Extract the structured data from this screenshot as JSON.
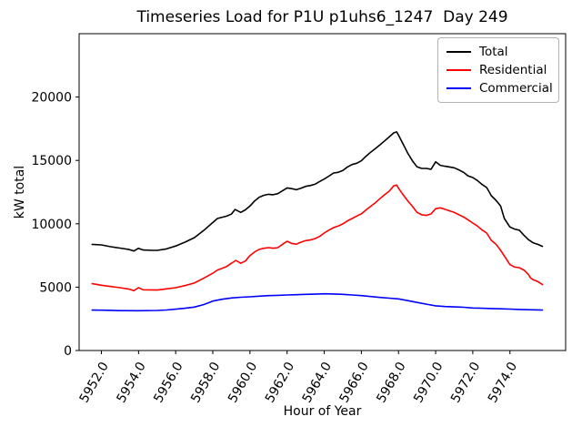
{
  "chart_data": {
    "type": "line",
    "title": "Timeseries Load for P1U p1uhs6_1247  Day 249",
    "xlabel": "Hour of Year",
    "ylabel": "kW total",
    "xlim": [
      5950.8,
      5977.0
    ],
    "ylim": [
      0,
      25000
    ],
    "grid": false,
    "xticks": {
      "values": [
        5952,
        5954,
        5956,
        5958,
        5960,
        5962,
        5964,
        5966,
        5968,
        5970,
        5972,
        5974
      ],
      "labels": [
        "5952.0",
        "5954.0",
        "5956.0",
        "5958.0",
        "5960.0",
        "5962.0",
        "5964.0",
        "5966.0",
        "5968.0",
        "5970.0",
        "5972.0",
        "5974.0"
      ],
      "rotation_deg": 60
    },
    "yticks": {
      "values": [
        0,
        5000,
        10000,
        15000,
        20000
      ],
      "labels": [
        "0",
        "5000",
        "10000",
        "15000",
        "20000"
      ]
    },
    "legend": {
      "position": "upper right",
      "entries": [
        "Total",
        "Residential",
        "Commercial"
      ]
    },
    "series": [
      {
        "name": "Total",
        "color": "#000000",
        "points": [
          [
            5951.5,
            8380
          ],
          [
            5952,
            8330
          ],
          [
            5952.5,
            8190
          ],
          [
            5953,
            8080
          ],
          [
            5953.5,
            7970
          ],
          [
            5953.75,
            7850
          ],
          [
            5954,
            8070
          ],
          [
            5954.25,
            7930
          ],
          [
            5954.75,
            7900
          ],
          [
            5955,
            7900
          ],
          [
            5955.5,
            8020
          ],
          [
            5956,
            8250
          ],
          [
            5956.5,
            8550
          ],
          [
            5957,
            8900
          ],
          [
            5957.5,
            9460
          ],
          [
            5958,
            10100
          ],
          [
            5958.25,
            10420
          ],
          [
            5958.75,
            10600
          ],
          [
            5959,
            10760
          ],
          [
            5959.2,
            11130
          ],
          [
            5959.5,
            10900
          ],
          [
            5959.75,
            11100
          ],
          [
            5960,
            11400
          ],
          [
            5960.25,
            11800
          ],
          [
            5960.5,
            12100
          ],
          [
            5960.75,
            12250
          ],
          [
            5961,
            12330
          ],
          [
            5961.25,
            12290
          ],
          [
            5961.5,
            12380
          ],
          [
            5961.75,
            12600
          ],
          [
            5962,
            12830
          ],
          [
            5962.25,
            12770
          ],
          [
            5962.5,
            12690
          ],
          [
            5962.75,
            12810
          ],
          [
            5963,
            12950
          ],
          [
            5963.25,
            13020
          ],
          [
            5963.5,
            13120
          ],
          [
            5963.75,
            13330
          ],
          [
            5964,
            13530
          ],
          [
            5964.25,
            13760
          ],
          [
            5964.5,
            14010
          ],
          [
            5964.75,
            14060
          ],
          [
            5965,
            14200
          ],
          [
            5965.25,
            14480
          ],
          [
            5965.5,
            14680
          ],
          [
            5965.75,
            14780
          ],
          [
            5966,
            14970
          ],
          [
            5966.25,
            15330
          ],
          [
            5966.5,
            15650
          ],
          [
            5966.75,
            15930
          ],
          [
            5967,
            16230
          ],
          [
            5967.25,
            16540
          ],
          [
            5967.5,
            16850
          ],
          [
            5967.75,
            17180
          ],
          [
            5967.9,
            17250
          ],
          [
            5968,
            17000
          ],
          [
            5968.25,
            16290
          ],
          [
            5968.5,
            15570
          ],
          [
            5968.75,
            14970
          ],
          [
            5969,
            14490
          ],
          [
            5969.25,
            14370
          ],
          [
            5969.5,
            14370
          ],
          [
            5969.75,
            14300
          ],
          [
            5970,
            14890
          ],
          [
            5970.25,
            14610
          ],
          [
            5970.5,
            14540
          ],
          [
            5971,
            14420
          ],
          [
            5971.25,
            14250
          ],
          [
            5971.5,
            14060
          ],
          [
            5971.75,
            13770
          ],
          [
            5972,
            13650
          ],
          [
            5972.25,
            13410
          ],
          [
            5972.5,
            13100
          ],
          [
            5972.75,
            12860
          ],
          [
            5973,
            12210
          ],
          [
            5973.25,
            11850
          ],
          [
            5973.5,
            11400
          ],
          [
            5973.7,
            10420
          ],
          [
            5974,
            9750
          ],
          [
            5974.25,
            9580
          ],
          [
            5974.5,
            9500
          ],
          [
            5974.75,
            9100
          ],
          [
            5975,
            8740
          ],
          [
            5975.25,
            8500
          ],
          [
            5975.5,
            8380
          ],
          [
            5975.75,
            8220
          ]
        ]
      },
      {
        "name": "Residential",
        "color": "#ff0000",
        "points": [
          [
            5951.5,
            5270
          ],
          [
            5952,
            5150
          ],
          [
            5952.5,
            5050
          ],
          [
            5953,
            4960
          ],
          [
            5953.5,
            4840
          ],
          [
            5953.75,
            4720
          ],
          [
            5954,
            4960
          ],
          [
            5954.25,
            4790
          ],
          [
            5955,
            4770
          ],
          [
            5955.5,
            4860
          ],
          [
            5956,
            4960
          ],
          [
            5956.5,
            5120
          ],
          [
            5957,
            5320
          ],
          [
            5957.5,
            5700
          ],
          [
            5958,
            6100
          ],
          [
            5958.25,
            6350
          ],
          [
            5958.5,
            6490
          ],
          [
            5958.75,
            6630
          ],
          [
            5959,
            6880
          ],
          [
            5959.25,
            7110
          ],
          [
            5959.5,
            6880
          ],
          [
            5959.75,
            7060
          ],
          [
            5960,
            7490
          ],
          [
            5960.25,
            7780
          ],
          [
            5960.5,
            7980
          ],
          [
            5960.75,
            8070
          ],
          [
            5961,
            8120
          ],
          [
            5961.25,
            8070
          ],
          [
            5961.5,
            8120
          ],
          [
            5961.75,
            8380
          ],
          [
            5962,
            8620
          ],
          [
            5962.25,
            8450
          ],
          [
            5962.5,
            8390
          ],
          [
            5962.75,
            8550
          ],
          [
            5963,
            8670
          ],
          [
            5963.25,
            8720
          ],
          [
            5963.5,
            8830
          ],
          [
            5963.75,
            9000
          ],
          [
            5964,
            9270
          ],
          [
            5964.25,
            9500
          ],
          [
            5964.5,
            9700
          ],
          [
            5964.75,
            9820
          ],
          [
            5965,
            9990
          ],
          [
            5965.25,
            10230
          ],
          [
            5965.5,
            10420
          ],
          [
            5965.75,
            10610
          ],
          [
            5966,
            10780
          ],
          [
            5966.25,
            11090
          ],
          [
            5966.5,
            11380
          ],
          [
            5966.75,
            11660
          ],
          [
            5967,
            11980
          ],
          [
            5967.25,
            12290
          ],
          [
            5967.5,
            12570
          ],
          [
            5967.75,
            13000
          ],
          [
            5967.9,
            13050
          ],
          [
            5968,
            12810
          ],
          [
            5968.25,
            12290
          ],
          [
            5968.5,
            11810
          ],
          [
            5968.75,
            11380
          ],
          [
            5969,
            10900
          ],
          [
            5969.25,
            10710
          ],
          [
            5969.5,
            10660
          ],
          [
            5969.75,
            10780
          ],
          [
            5970,
            11190
          ],
          [
            5970.25,
            11260
          ],
          [
            5970.5,
            11140
          ],
          [
            5970.75,
            11020
          ],
          [
            5971,
            10900
          ],
          [
            5971.25,
            10710
          ],
          [
            5971.5,
            10540
          ],
          [
            5971.75,
            10300
          ],
          [
            5972,
            10060
          ],
          [
            5972.25,
            9820
          ],
          [
            5972.5,
            9510
          ],
          [
            5972.75,
            9270
          ],
          [
            5973,
            8690
          ],
          [
            5973.25,
            8390
          ],
          [
            5973.5,
            7900
          ],
          [
            5973.75,
            7350
          ],
          [
            5974,
            6780
          ],
          [
            5974.25,
            6590
          ],
          [
            5974.5,
            6540
          ],
          [
            5974.75,
            6350
          ],
          [
            5975,
            5990
          ],
          [
            5975.1,
            5750
          ],
          [
            5975.25,
            5580
          ],
          [
            5975.5,
            5440
          ],
          [
            5975.75,
            5200
          ]
        ]
      },
      {
        "name": "Commercial",
        "color": "#0000ff",
        "points": [
          [
            5951.5,
            3190
          ],
          [
            5952,
            3185
          ],
          [
            5953,
            3150
          ],
          [
            5954,
            3140
          ],
          [
            5955,
            3160
          ],
          [
            5955.5,
            3200
          ],
          [
            5956,
            3260
          ],
          [
            5956.5,
            3330
          ],
          [
            5957,
            3430
          ],
          [
            5957.5,
            3620
          ],
          [
            5958,
            3900
          ],
          [
            5958.5,
            4045
          ],
          [
            5959,
            4145
          ],
          [
            5959.5,
            4200
          ],
          [
            5960,
            4240
          ],
          [
            5960.5,
            4290
          ],
          [
            5961,
            4330
          ],
          [
            5961.5,
            4355
          ],
          [
            5962,
            4380
          ],
          [
            5962.5,
            4405
          ],
          [
            5963,
            4430
          ],
          [
            5963.5,
            4450
          ],
          [
            5964,
            4475
          ],
          [
            5964.5,
            4460
          ],
          [
            5965,
            4430
          ],
          [
            5965.5,
            4380
          ],
          [
            5966,
            4330
          ],
          [
            5966.5,
            4260
          ],
          [
            5967,
            4190
          ],
          [
            5967.5,
            4130
          ],
          [
            5968,
            4070
          ],
          [
            5968.5,
            3940
          ],
          [
            5969,
            3790
          ],
          [
            5969.5,
            3660
          ],
          [
            5970,
            3530
          ],
          [
            5970.5,
            3470
          ],
          [
            5971,
            3440
          ],
          [
            5971.5,
            3410
          ],
          [
            5972,
            3355
          ],
          [
            5972.5,
            3330
          ],
          [
            5973,
            3310
          ],
          [
            5973.5,
            3290
          ],
          [
            5974,
            3270
          ],
          [
            5974.5,
            3240
          ],
          [
            5975,
            3220
          ],
          [
            5975.75,
            3190
          ]
        ]
      }
    ]
  }
}
